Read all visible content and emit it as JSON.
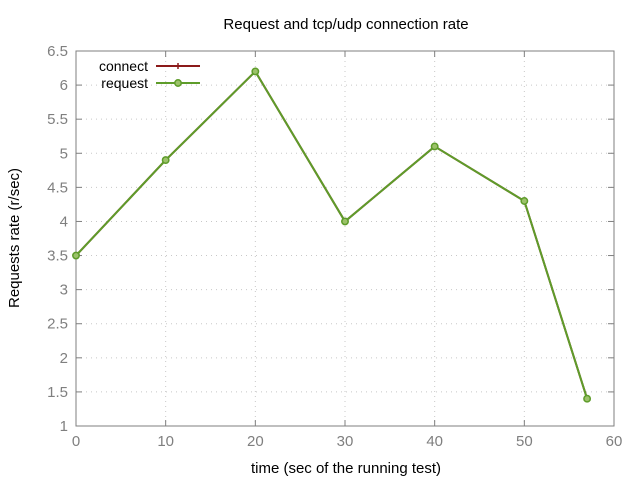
{
  "chart_data": {
    "type": "line",
    "title": "Request and tcp/udp connection rate",
    "xlabel": "time (sec of the running test)",
    "ylabel": "Requests rate (r/sec)",
    "xlim": [
      0,
      60
    ],
    "ylim": [
      1,
      6.5
    ],
    "x_ticks": [
      "0",
      "10",
      "20",
      "30",
      "40",
      "50",
      "60"
    ],
    "y_ticks": [
      "1",
      "1.5",
      "2",
      "2.5",
      "3",
      "3.5",
      "4",
      "4.5",
      "5",
      "5.5",
      "6",
      "6.5"
    ],
    "grid": true,
    "legend_position": "top-left",
    "x": [
      0,
      10,
      20,
      30,
      40,
      50,
      57
    ],
    "series": [
      {
        "name": "connect",
        "color": "#8b1a1a",
        "marker": "plus",
        "values": [
          3.5,
          4.9,
          6.2,
          4.0,
          5.1,
          4.3,
          1.4
        ]
      },
      {
        "name": "request",
        "color": "#5e9c2a",
        "marker": "circle",
        "values": [
          3.5,
          4.9,
          6.2,
          4.0,
          5.1,
          4.3,
          1.4
        ]
      }
    ]
  }
}
